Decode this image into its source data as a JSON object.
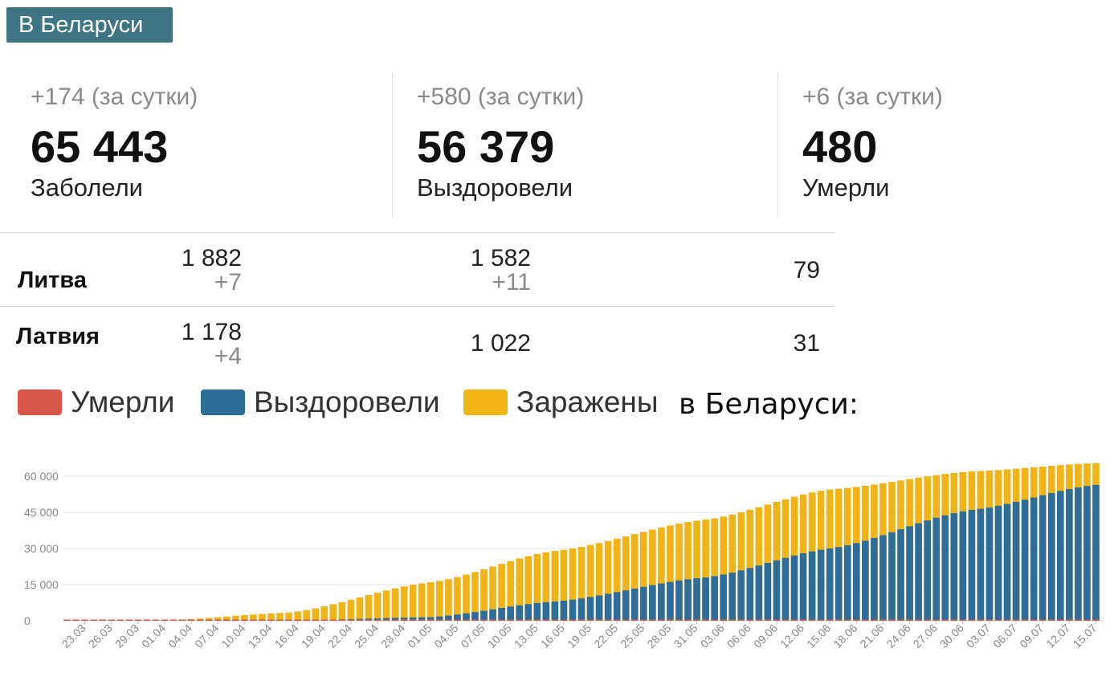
{
  "header": {
    "badge": "В Беларуси"
  },
  "stats": [
    {
      "delta": "+174 (за сутки)",
      "value": "65 443",
      "label": "Заболели"
    },
    {
      "delta": "+580 (за сутки)",
      "value": "56 379",
      "label": "Выздоровели"
    },
    {
      "delta": "+6 (за сутки)",
      "value": "480",
      "label": "Умерли"
    }
  ],
  "countries": [
    {
      "name": "Литва",
      "cases": "1 882",
      "cases_delta": "+7",
      "recovered": "1 582",
      "recovered_delta": "+11",
      "deaths": "79"
    },
    {
      "name": "Латвия",
      "cases": "1 178",
      "cases_delta": "+4",
      "recovered": "1 022",
      "recovered_delta": "",
      "deaths": "31"
    }
  ],
  "legend": {
    "deaths": {
      "label": "Умерли",
      "color": "#d9574a"
    },
    "recovered": {
      "label": "Выздоровели",
      "color": "#2f6d99"
    },
    "infected": {
      "label": "Заражены",
      "color": "#f0b416"
    }
  },
  "chart_title": "в Беларуси:",
  "chart_data": {
    "type": "bar",
    "stacked": true,
    "ylim": [
      0,
      65000
    ],
    "yticks": [
      "0",
      "15 000",
      "30 000",
      "45 000",
      "60 000"
    ],
    "grid": true,
    "x_start": "2020-03-21",
    "x_end": "2020-07-15",
    "x_tick_labels": [
      "23.03",
      "26.03",
      "29.03",
      "01.04",
      "04.04",
      "07.04",
      "10.04",
      "13.04",
      "16.04",
      "19.04",
      "22.04",
      "25.04",
      "28.04",
      "01.05",
      "04.05",
      "07.05",
      "10.05",
      "13.05",
      "16.05",
      "19.05",
      "22.05",
      "25.05",
      "28.05",
      "31.05",
      "03.06",
      "06.06",
      "09.06",
      "12.06",
      "15.06",
      "18.06",
      "21.06",
      "24.06",
      "27.06",
      "30.06",
      "03.07",
      "06.07",
      "09.07",
      "12.07",
      "15.07"
    ],
    "series": [
      {
        "name": "Умерли",
        "color": "#d9574a",
        "points": [
          [
            "21.03",
            0
          ],
          [
            "01.04",
            2
          ],
          [
            "15.04",
            30
          ],
          [
            "01.05",
            120
          ],
          [
            "15.05",
            160
          ],
          [
            "01.06",
            250
          ],
          [
            "15.06",
            340
          ],
          [
            "01.07",
            430
          ],
          [
            "15.07",
            480
          ]
        ]
      },
      {
        "name": "Выздоровели",
        "color": "#2f6d99",
        "points": [
          [
            "21.03",
            0
          ],
          [
            "01.04",
            30
          ],
          [
            "15.04",
            120
          ],
          [
            "01.05",
            1500
          ],
          [
            "15.05",
            8000
          ],
          [
            "01.06",
            18000
          ],
          [
            "15.06",
            30000
          ],
          [
            "01.07",
            46000
          ],
          [
            "15.07",
            56379
          ]
        ]
      },
      {
        "name": "Заражены",
        "color": "#f0b416",
        "points": [
          [
            "21.03",
            70
          ],
          [
            "01.04",
            150
          ],
          [
            "15.04",
            3400
          ],
          [
            "01.05",
            16000
          ],
          [
            "15.05",
            29000
          ],
          [
            "01.06",
            42000
          ],
          [
            "15.06",
            54500
          ],
          [
            "01.07",
            62000
          ],
          [
            "15.07",
            65443
          ]
        ]
      }
    ]
  }
}
